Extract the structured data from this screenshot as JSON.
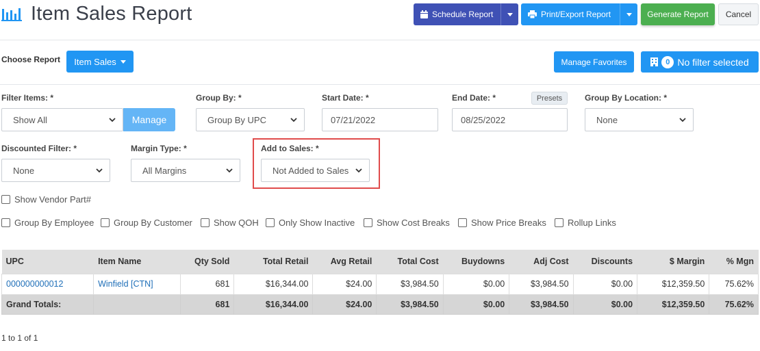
{
  "header": {
    "title": "Item Sales Report",
    "schedule_label": "Schedule Report",
    "print_label": "Print/Export Report",
    "generate_label": "Generate Report",
    "cancel_label": "Cancel"
  },
  "report_row": {
    "choose_label": "Choose Report",
    "report_button": "Item Sales",
    "favorites_label": "Manage Favorites",
    "filter_count": "0",
    "filter_label": "No filter selected"
  },
  "filters": {
    "filter_items": {
      "label": "Filter Items: *",
      "value": "Show All",
      "manage_label": "Manage"
    },
    "group_by": {
      "label": "Group By: *",
      "value": "Group By UPC"
    },
    "start_date": {
      "label": "Start Date: *",
      "value": "07/21/2022"
    },
    "end_date": {
      "label": "End Date: *",
      "value": "08/25/2022",
      "presets_label": "Presets"
    },
    "group_by_location": {
      "label": "Group By Location: *",
      "value": "None"
    },
    "discounted": {
      "label": "Discounted Filter: *",
      "value": "None"
    },
    "margin_type": {
      "label": "Margin Type: *",
      "value": "All Margins"
    },
    "add_to_sales": {
      "label": "Add to Sales: *",
      "value": "Not Added to Sales"
    }
  },
  "checkboxes": {
    "vendor_part": "Show Vendor Part#",
    "group_employee": "Group By Employee",
    "group_customer": "Group By Customer",
    "show_qoh": "Show QOH",
    "only_inactive": "Only Show Inactive",
    "cost_breaks": "Show Cost Breaks",
    "price_breaks": "Show Price Breaks",
    "rollup_links": "Rollup Links"
  },
  "table": {
    "columns": [
      "UPC",
      "Item Name",
      "Qty Sold",
      "Total Retail",
      "Avg Retail",
      "Total Cost",
      "Buydowns",
      "Adj Cost",
      "Discounts",
      "$ Margin",
      "% Mgn"
    ],
    "rows": [
      [
        "000000000012",
        "Winfield [CTN]",
        "681",
        "$16,344.00",
        "$24.00",
        "$3,984.50",
        "$0.00",
        "$3,984.50",
        "$0.00",
        "$12,359.50",
        "75.62%"
      ]
    ],
    "totals": [
      "Grand Totals:",
      "",
      "681",
      "$16,344.00",
      "$24.00",
      "$3,984.50",
      "$0.00",
      "$3,984.50",
      "$0.00",
      "$12,359.50",
      "75.62%"
    ]
  },
  "pager": "1 to 1 of 1",
  "colors": {
    "schedule": "#3f51b5",
    "primary": "#2196f3",
    "generate": "#4caf50",
    "highlight": "#e04b4b"
  }
}
